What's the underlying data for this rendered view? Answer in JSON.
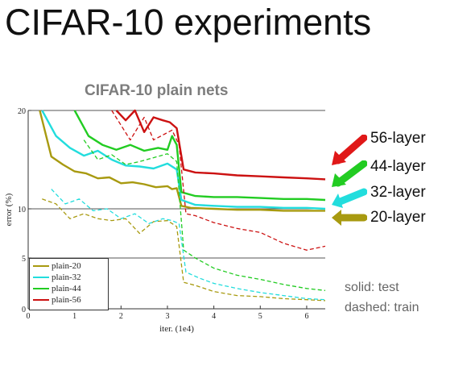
{
  "slide": {
    "title": "CIFAR-10 experiments"
  },
  "notes": {
    "solid": "solid: test",
    "dashed": "dashed: train"
  },
  "callouts": [
    {
      "label": "56-layer",
      "color": "#e01818"
    },
    {
      "label": "44-layer",
      "color": "#22cc22"
    },
    {
      "label": "32-layer",
      "color": "#22dddd"
    },
    {
      "label": "20-layer",
      "color": "#a89a10"
    }
  ],
  "chart_data": {
    "type": "line",
    "title": "CIFAR-10 plain nets",
    "xlabel": "iter. (1e4)",
    "ylabel": "error (%)",
    "xlim": [
      0,
      6.4
    ],
    "ylim": [
      0,
      20
    ],
    "x_ticks": [
      "0",
      "1",
      "2",
      "3",
      "4",
      "5",
      "6"
    ],
    "y_ticks": [
      "0",
      "5",
      "10",
      "20"
    ],
    "grid": "horizontal at 5, 10, 20",
    "legend": {
      "position": "bottom-left",
      "entries": [
        "plain-20",
        "plain-32",
        "plain-44",
        "plain-56"
      ]
    },
    "series": [
      {
        "name": "plain-20",
        "style": "solid",
        "color": "#a89a10",
        "x": [
          0.25,
          0.5,
          0.75,
          1.0,
          1.25,
          1.5,
          1.75,
          2.0,
          2.25,
          2.5,
          2.75,
          3.0,
          3.1,
          3.2,
          3.3,
          3.5,
          4.0,
          4.5,
          5.0,
          5.5,
          6.0,
          6.4
        ],
        "y": [
          20.0,
          15.3,
          14.5,
          13.8,
          13.6,
          13.1,
          13.2,
          12.6,
          12.7,
          12.5,
          12.2,
          12.3,
          12.0,
          12.1,
          10.3,
          10.1,
          10.0,
          9.9,
          9.9,
          9.8,
          9.8,
          9.8
        ]
      },
      {
        "name": "plain-20",
        "style": "dashed",
        "color": "#a89a10",
        "x": [
          0.3,
          0.6,
          0.9,
          1.2,
          1.5,
          1.8,
          2.1,
          2.4,
          2.7,
          3.0,
          3.2,
          3.35,
          3.6,
          4.0,
          4.5,
          5.0,
          5.5,
          6.0,
          6.4
        ],
        "y": [
          11.0,
          10.5,
          9.0,
          9.5,
          9.0,
          8.8,
          9.0,
          7.5,
          8.7,
          8.8,
          8.2,
          2.6,
          2.3,
          1.7,
          1.3,
          1.2,
          1.0,
          0.9,
          0.8
        ]
      },
      {
        "name": "plain-32",
        "style": "solid",
        "color": "#22dddd",
        "x": [
          0.3,
          0.6,
          0.9,
          1.2,
          1.5,
          1.8,
          2.1,
          2.4,
          2.7,
          3.0,
          3.2,
          3.3,
          3.6,
          4.0,
          4.5,
          5.0,
          5.5,
          6.0,
          6.4
        ],
        "y": [
          20.0,
          17.4,
          16.2,
          15.4,
          15.9,
          15.0,
          14.4,
          14.3,
          14.1,
          14.6,
          14.0,
          10.9,
          10.4,
          10.3,
          10.2,
          10.2,
          10.1,
          10.1,
          10.0
        ]
      },
      {
        "name": "plain-32",
        "style": "dashed",
        "color": "#22dddd",
        "x": [
          0.5,
          0.8,
          1.1,
          1.4,
          1.7,
          2.0,
          2.3,
          2.6,
          2.9,
          3.1,
          3.25,
          3.4,
          3.7,
          4.0,
          4.5,
          5.0,
          5.5,
          6.0,
          6.4
        ],
        "y": [
          12.0,
          10.5,
          11.0,
          9.8,
          10.0,
          9.0,
          9.5,
          8.5,
          9.0,
          8.8,
          8.5,
          3.6,
          3.0,
          2.5,
          2.0,
          1.6,
          1.3,
          1.0,
          0.9
        ]
      },
      {
        "name": "plain-44",
        "style": "solid",
        "color": "#22cc22",
        "x": [
          1.0,
          1.3,
          1.6,
          1.9,
          2.2,
          2.5,
          2.8,
          3.0,
          3.1,
          3.2,
          3.3,
          3.6,
          4.0,
          4.5,
          5.0,
          5.5,
          6.0,
          6.4
        ],
        "y": [
          20.0,
          17.4,
          16.5,
          16.0,
          16.5,
          15.9,
          16.2,
          16.0,
          17.4,
          16.5,
          11.7,
          11.3,
          11.2,
          11.2,
          11.1,
          11.0,
          11.0,
          10.9
        ]
      },
      {
        "name": "plain-44",
        "style": "dashed",
        "color": "#22cc22",
        "x": [
          1.2,
          1.5,
          1.8,
          2.1,
          2.4,
          2.7,
          3.0,
          3.2,
          3.35,
          3.6,
          4.0,
          4.5,
          5.0,
          5.5,
          6.0,
          6.4
        ],
        "y": [
          17.0,
          15.0,
          15.5,
          14.5,
          14.8,
          15.2,
          15.6,
          14.8,
          5.8,
          5.0,
          4.0,
          3.3,
          2.9,
          2.4,
          2.0,
          1.8
        ]
      },
      {
        "name": "plain-56",
        "style": "solid",
        "color": "#cc1111",
        "x": [
          1.9,
          2.1,
          2.3,
          2.5,
          2.7,
          2.9,
          3.05,
          3.2,
          3.35,
          3.6,
          4.0,
          4.5,
          5.0,
          5.5,
          6.0,
          6.4
        ],
        "y": [
          20.0,
          19.0,
          20.0,
          17.8,
          19.3,
          19.0,
          18.8,
          18.2,
          14.0,
          13.7,
          13.6,
          13.4,
          13.3,
          13.2,
          13.1,
          13.0
        ]
      },
      {
        "name": "plain-56",
        "style": "dashed",
        "color": "#cc1111",
        "x": [
          1.8,
          2.0,
          2.2,
          2.5,
          2.7,
          2.9,
          3.1,
          3.25,
          3.4,
          3.6,
          4.0,
          4.5,
          5.0,
          5.5,
          6.0,
          6.4
        ],
        "y": [
          20.0,
          18.5,
          17.0,
          19.3,
          17.0,
          17.5,
          18.0,
          16.5,
          9.5,
          9.3,
          8.6,
          8.0,
          7.6,
          6.5,
          5.8,
          6.2
        ]
      }
    ]
  }
}
